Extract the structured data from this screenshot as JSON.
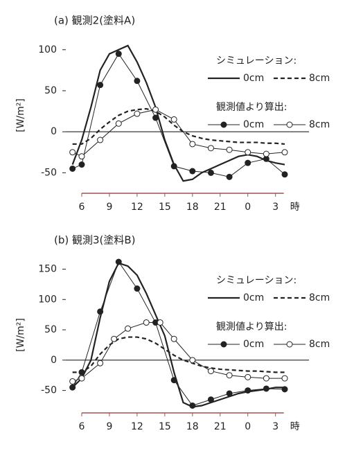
{
  "chart_data": [
    {
      "type": "line",
      "title": "(a) 観測2(塗料A)",
      "y_label": "[W/m²]",
      "x_label": "時",
      "xlim": [
        4.5,
        29.5
      ],
      "ylim": [
        -75,
        115
      ],
      "xticks": [
        6,
        9,
        12,
        15,
        18,
        21,
        {
          "value": 24,
          "label": "0"
        },
        {
          "value": 27,
          "label": "3"
        }
      ],
      "yticks": [
        100,
        50,
        0,
        -50
      ],
      "series_groups": [
        {
          "name": "シミュレーション:",
          "series": [
            {
              "name": "0cm",
              "color": "#222",
              "line": "solid",
              "width": 2.2,
              "x": [
                5,
                6,
                7,
                8,
                9,
                10,
                11,
                12,
                13,
                14,
                15,
                16,
                17,
                18,
                19,
                20,
                21,
                22,
                23,
                24,
                25,
                26,
                27,
                28
              ],
              "values": [
                -40,
                -10,
                30,
                75,
                95,
                100,
                105,
                85,
                60,
                30,
                -10,
                -40,
                -60,
                -58,
                -50,
                -45,
                -40,
                -35,
                -30,
                -28,
                -30,
                -35,
                -38,
                -40
              ]
            },
            {
              "name": "8cm",
              "color": "#222",
              "line": "dashed",
              "width": 2.2,
              "x": [
                5,
                6,
                7,
                8,
                9,
                10,
                11,
                12,
                13,
                14,
                15,
                16,
                17,
                18,
                19,
                20,
                21,
                22,
                23,
                24,
                25,
                26,
                27,
                28
              ],
              "values": [
                -15,
                -15,
                -8,
                3,
                12,
                20,
                25,
                27,
                28,
                25,
                18,
                8,
                0,
                -5,
                -8,
                -10,
                -11,
                -12,
                -13,
                -13,
                -13,
                -14,
                -14,
                -15
              ]
            }
          ]
        },
        {
          "name": "観測値より算出:",
          "series": [
            {
              "name": "0cm",
              "color": "#222",
              "line": "solid",
              "width": 1,
              "marker": "filled",
              "x": [
                5,
                6,
                8,
                10,
                12,
                14,
                16,
                18,
                20,
                22,
                24,
                26,
                28
              ],
              "values": [
                -45,
                -40,
                57,
                95,
                62,
                17,
                -42,
                -48,
                -50,
                -55,
                -38,
                -33,
                -52
              ]
            },
            {
              "name": "8cm",
              "color": "#222",
              "line": "solid",
              "width": 1,
              "marker": "open",
              "x": [
                5,
                6,
                8,
                10,
                12,
                14,
                16,
                18,
                20,
                22,
                24,
                26,
                28
              ],
              "values": [
                -25,
                -30,
                -10,
                10,
                22,
                27,
                15,
                -15,
                -20,
                -22,
                -25,
                -27,
                -25
              ]
            }
          ]
        }
      ]
    },
    {
      "type": "line",
      "title": "(b) 観測3(塗料B)",
      "y_label": "[W/m²]",
      "x_label": "時",
      "xlim": [
        4.5,
        29.5
      ],
      "ylim": [
        -87,
        170
      ],
      "xticks": [
        6,
        9,
        12,
        15,
        18,
        21,
        {
          "value": 24,
          "label": "0"
        },
        {
          "value": 27,
          "label": "3"
        }
      ],
      "yticks": [
        150,
        100,
        50,
        0,
        -50
      ],
      "series_groups": [
        {
          "name": "シミュレーション:",
          "series": [
            {
              "name": "0cm",
              "color": "#222",
              "line": "solid",
              "width": 2.2,
              "x": [
                5,
                6,
                7,
                8,
                9,
                10,
                11,
                12,
                13,
                14,
                15,
                16,
                17,
                18,
                19,
                20,
                21,
                22,
                23,
                24,
                25,
                26,
                27,
                28
              ],
              "values": [
                -45,
                -30,
                0,
                70,
                130,
                160,
                155,
                140,
                110,
                75,
                40,
                -20,
                -70,
                -77,
                -75,
                -70,
                -65,
                -60,
                -55,
                -52,
                -50,
                -48,
                -45,
                -45
              ]
            },
            {
              "name": "8cm",
              "color": "#222",
              "line": "dashed",
              "width": 2.2,
              "x": [
                5,
                6,
                7,
                8,
                9,
                10,
                11,
                12,
                13,
                14,
                15,
                16,
                17,
                18,
                19,
                20,
                21,
                22,
                23,
                24,
                25,
                26,
                27,
                28
              ],
              "values": [
                -20,
                -20,
                -10,
                10,
                25,
                35,
                38,
                38,
                35,
                28,
                18,
                8,
                0,
                -5,
                -10,
                -13,
                -15,
                -16,
                -17,
                -18,
                -18,
                -19,
                -20,
                -20
              ]
            }
          ]
        },
        {
          "name": "観測値より算出:",
          "series": [
            {
              "name": "0cm",
              "color": "#222",
              "line": "solid",
              "width": 1,
              "marker": "filled",
              "x": [
                5,
                6,
                8,
                10,
                12,
                14,
                16,
                18,
                20,
                22,
                24,
                26,
                28
              ],
              "values": [
                -45,
                -20,
                80,
                162,
                118,
                62,
                -33,
                -75,
                -65,
                -55,
                -50,
                -47,
                -48
              ]
            },
            {
              "name": "8cm",
              "color": "#222",
              "line": "solid",
              "width": 1,
              "marker": "open",
              "x": [
                5,
                6,
                8,
                9.5,
                11,
                13,
                14.5,
                16,
                18,
                20,
                22,
                24,
                26,
                28
              ],
              "values": [
                -35,
                -30,
                -5,
                35,
                52,
                62,
                62,
                35,
                0,
                -18,
                -25,
                -28,
                -30,
                -30
              ]
            }
          ]
        }
      ]
    }
  ]
}
